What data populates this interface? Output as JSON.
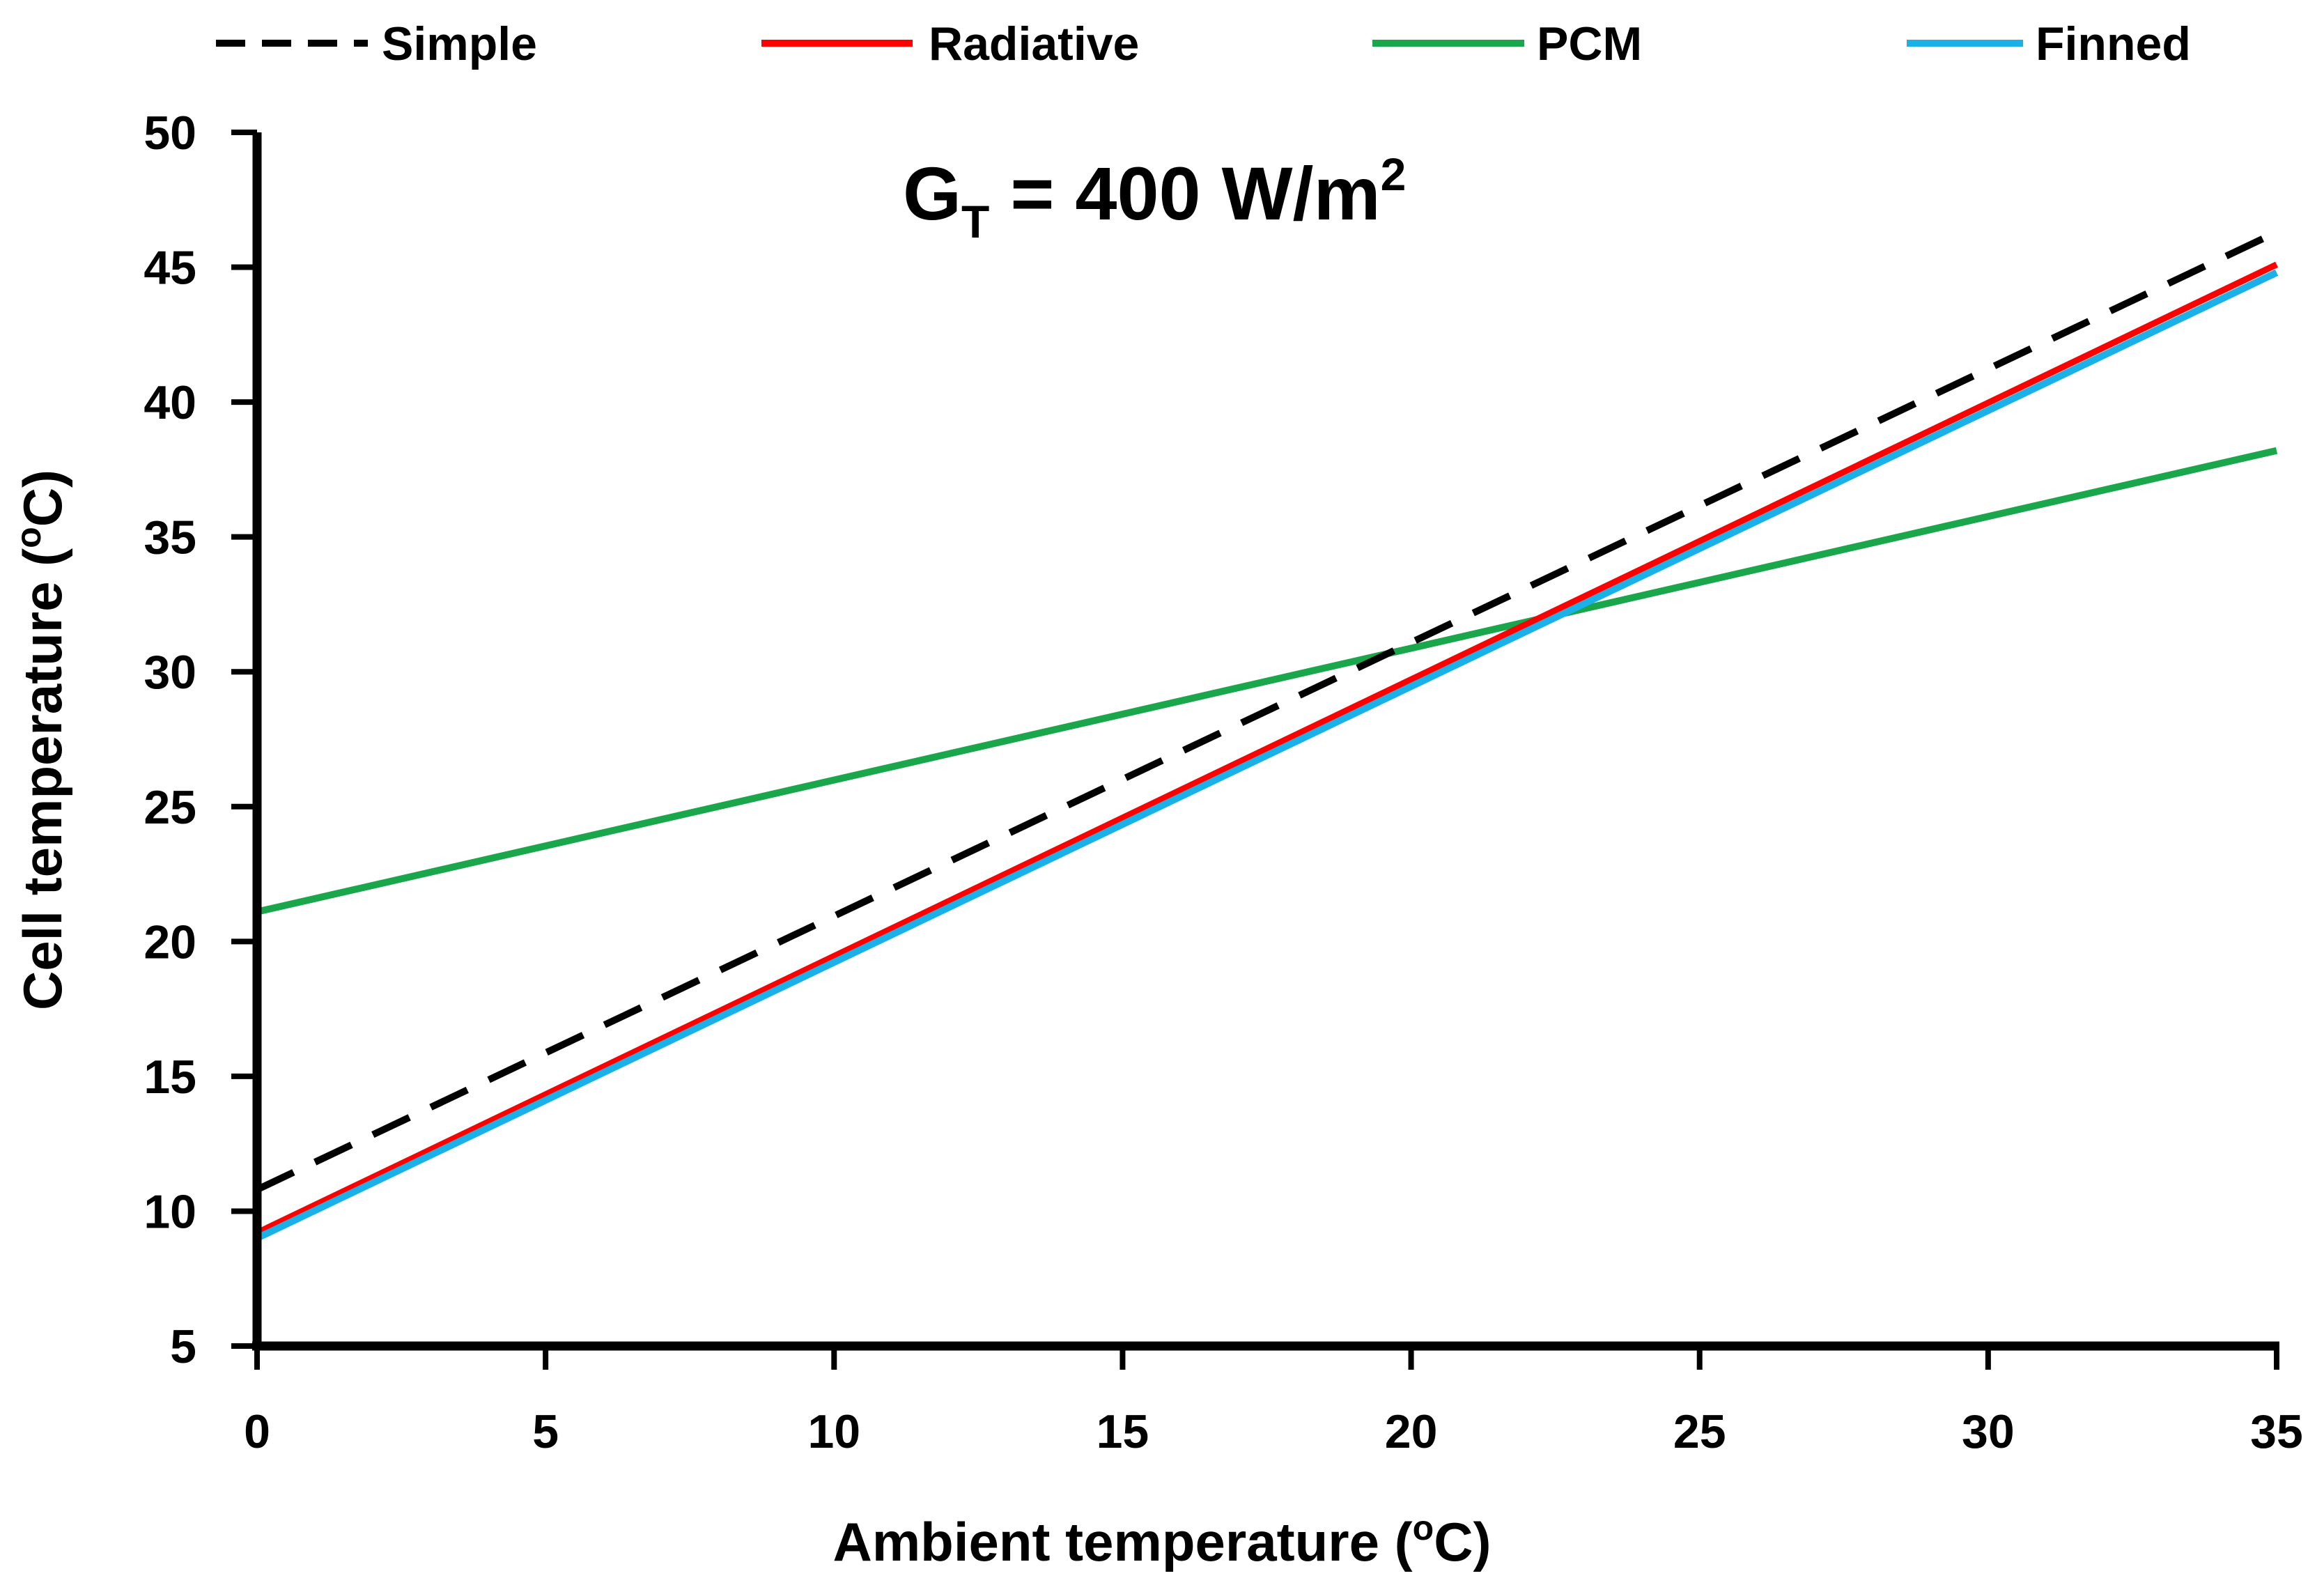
{
  "chart_data": {
    "type": "line",
    "title": "",
    "xlabel_prefix": "Ambient temperature (",
    "xlabel_sup": "o",
    "xlabel_suffix": "C)",
    "ylabel_prefix": "Cell temperature (",
    "ylabel_sup": "o",
    "ylabel_suffix": "C)",
    "xlim": [
      0,
      35
    ],
    "ylim": [
      5,
      50
    ],
    "xticks": [
      "0",
      "5",
      "10",
      "15",
      "20",
      "25",
      "30",
      "35"
    ],
    "yticks": [
      "5",
      "10",
      "15",
      "20",
      "25",
      "30",
      "35",
      "40",
      "45",
      "50"
    ],
    "annotation": {
      "main": "G",
      "sub": "T",
      "mid": " = 400 W/m",
      "sup": "2"
    },
    "legend_position": "top",
    "series": [
      {
        "name": "Simple",
        "color": "#000000",
        "style": "dashed",
        "x": [
          0,
          35
        ],
        "y": [
          10.8,
          46.3
        ]
      },
      {
        "name": "Radiative",
        "color": "#ff0000",
        "style": "solid",
        "x": [
          0,
          35
        ],
        "y": [
          9.2,
          45.1
        ]
      },
      {
        "name": "PCM",
        "color": "#1aa64a",
        "style": "solid",
        "x": [
          0,
          35
        ],
        "y": [
          21.1,
          38.2
        ]
      },
      {
        "name": "Finned",
        "color": "#1cb0e8",
        "style": "solid",
        "x": [
          0,
          35
        ],
        "y": [
          9.0,
          44.8
        ]
      }
    ]
  }
}
